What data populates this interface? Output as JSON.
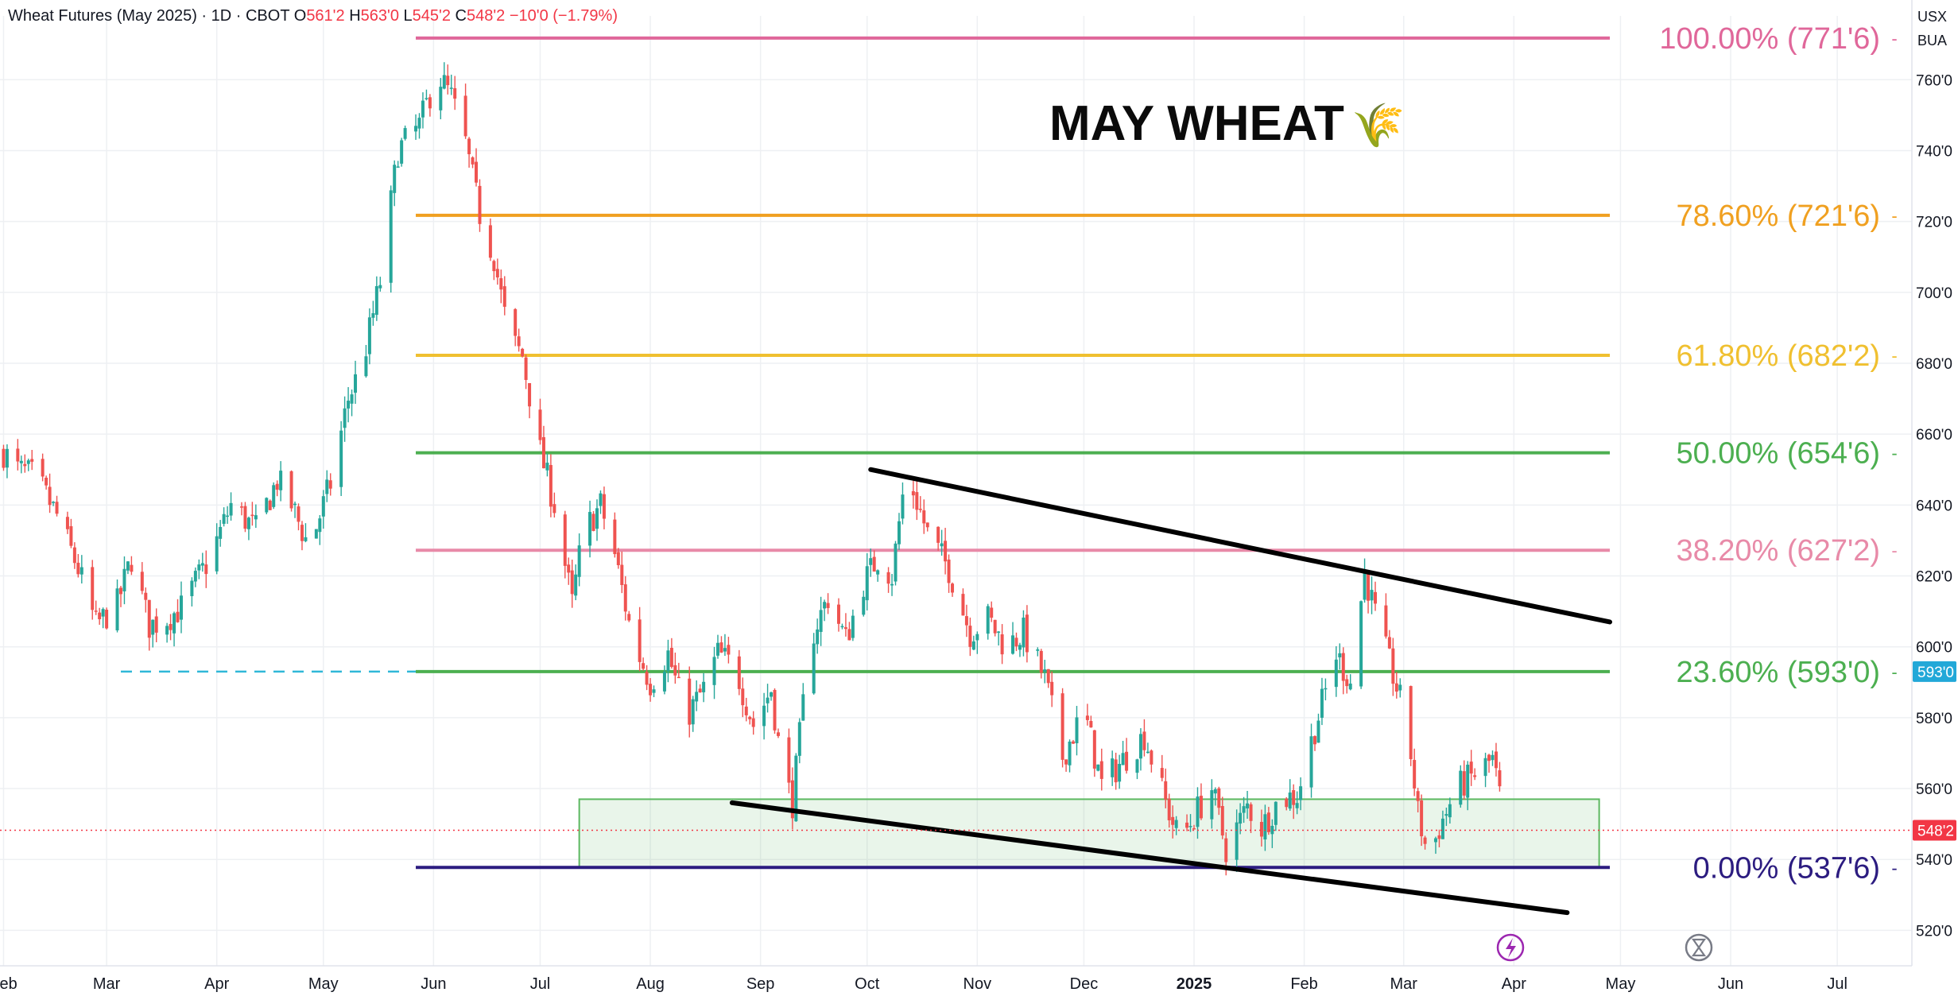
{
  "header": {
    "symbol": "Wheat Futures (May 2025) · 1D · CBOT",
    "o_label": "O",
    "o": "561'2",
    "h_label": "H",
    "h": "563'0",
    "l_label": "L",
    "l": "545'2",
    "c_label": "C",
    "c": "548'2",
    "change": "−10'0 (−1.79%)"
  },
  "currency": {
    "unit": "USX",
    "unit_label": "BUA"
  },
  "footer_icons": [
    "lightning-icon",
    "hourglass-icon"
  ],
  "chart_data": {
    "type": "candlestick",
    "title": "MAY WHEAT",
    "title_emoji": "🌾",
    "colors": {
      "up": "#26a69a",
      "down": "#ef5350"
    },
    "x_tick_labels": [
      "Feb",
      "Mar",
      "Apr",
      "May",
      "Jun",
      "Jul",
      "Aug",
      "Sep",
      "Oct",
      "Nov",
      "Dec",
      "2025",
      "Feb",
      "Mar",
      "Apr",
      "May",
      "Jun",
      "Jul"
    ],
    "x_tick_dates": [
      "2024-02-01",
      "2024-03-01",
      "2024-04-01",
      "2024-05-01",
      "2024-06-01",
      "2024-07-01",
      "2024-08-01",
      "2024-09-01",
      "2024-10-01",
      "2024-11-01",
      "2024-12-01",
      "2025-01-01",
      "2025-02-01",
      "2025-03-01",
      "2025-04-01",
      "2025-05-01",
      "2025-06-01",
      "2025-07-01"
    ],
    "x_range": [
      "2024-01-31",
      "2025-07-22"
    ],
    "y_ticks": [
      520,
      540,
      560,
      580,
      600,
      620,
      640,
      660,
      680,
      700,
      720,
      740,
      760
    ],
    "y_tick_labels": [
      "520'0",
      "540'0",
      "560'0",
      "580'0",
      "600'0",
      "620'0",
      "640'0",
      "660'0",
      "680'0",
      "700'0",
      "720'0",
      "740'0",
      "760'0"
    ],
    "ylim": [
      510,
      778
    ],
    "price_path": [
      [
        "2024-02-01",
        655
      ],
      [
        "2024-02-05",
        650
      ],
      [
        "2024-02-10",
        648
      ],
      [
        "2024-02-16",
        637
      ],
      [
        "2024-02-22",
        622
      ],
      [
        "2024-02-27",
        606
      ],
      [
        "2024-03-04",
        612
      ],
      [
        "2024-03-08",
        625
      ],
      [
        "2024-03-13",
        606
      ],
      [
        "2024-03-18",
        608
      ],
      [
        "2024-03-22",
        611
      ],
      [
        "2024-03-26",
        618
      ],
      [
        "2024-03-30",
        625
      ],
      [
        "2024-04-05",
        640
      ],
      [
        "2024-04-12",
        633
      ],
      [
        "2024-04-18",
        647
      ],
      [
        "2024-04-22",
        640
      ],
      [
        "2024-04-27",
        628
      ],
      [
        "2024-05-03",
        646
      ],
      [
        "2024-05-08",
        670
      ],
      [
        "2024-05-12",
        680
      ],
      [
        "2024-05-17",
        703
      ],
      [
        "2024-05-22",
        740
      ],
      [
        "2024-05-28",
        747
      ],
      [
        "2024-06-02",
        762
      ],
      [
        "2024-06-06",
        755
      ],
      [
        "2024-06-10",
        742
      ],
      [
        "2024-06-14",
        722
      ],
      [
        "2024-06-18",
        710
      ],
      [
        "2024-06-22",
        688
      ],
      [
        "2024-06-26",
        682
      ],
      [
        "2024-07-01",
        655
      ],
      [
        "2024-07-05",
        640
      ],
      [
        "2024-07-10",
        612
      ],
      [
        "2024-07-13",
        632
      ],
      [
        "2024-07-18",
        640
      ],
      [
        "2024-07-22",
        626
      ],
      [
        "2024-07-27",
        602
      ],
      [
        "2024-08-01",
        590
      ],
      [
        "2024-08-06",
        598
      ],
      [
        "2024-08-11",
        580
      ],
      [
        "2024-08-16",
        588
      ],
      [
        "2024-08-20",
        598
      ],
      [
        "2024-08-25",
        594
      ],
      [
        "2024-08-30",
        578
      ],
      [
        "2024-09-04",
        588
      ],
      [
        "2024-09-07",
        566
      ],
      [
        "2024-09-10",
        556
      ],
      [
        "2024-09-15",
        602
      ],
      [
        "2024-09-20",
        614
      ],
      [
        "2024-09-25",
        602
      ],
      [
        "2024-09-30",
        618
      ],
      [
        "2024-10-04",
        625
      ],
      [
        "2024-10-08",
        620
      ],
      [
        "2024-10-12",
        650
      ],
      [
        "2024-10-18",
        632
      ],
      [
        "2024-10-24",
        622
      ],
      [
        "2024-10-30",
        604
      ],
      [
        "2024-11-04",
        608
      ],
      [
        "2024-11-09",
        600
      ],
      [
        "2024-11-14",
        604
      ],
      [
        "2024-11-20",
        591
      ],
      [
        "2024-11-25",
        569
      ],
      [
        "2024-12-01",
        582
      ],
      [
        "2024-12-06",
        561
      ],
      [
        "2024-12-12",
        568
      ],
      [
        "2024-12-18",
        575
      ],
      [
        "2024-12-24",
        556
      ],
      [
        "2024-12-28",
        545
      ],
      [
        "2025-01-02",
        554
      ],
      [
        "2025-01-06",
        560
      ],
      [
        "2025-01-10",
        543
      ],
      [
        "2025-01-16",
        555
      ],
      [
        "2025-01-20",
        549
      ],
      [
        "2025-01-25",
        557
      ],
      [
        "2025-01-30",
        558
      ],
      [
        "2025-02-04",
        577
      ],
      [
        "2025-02-10",
        598
      ],
      [
        "2025-02-14",
        590
      ],
      [
        "2025-02-18",
        621
      ],
      [
        "2025-02-22",
        605
      ],
      [
        "2025-02-26",
        592
      ],
      [
        "2025-03-02",
        578
      ],
      [
        "2025-03-05",
        553
      ],
      [
        "2025-03-08",
        540
      ],
      [
        "2025-03-11",
        549
      ],
      [
        "2025-03-16",
        560
      ],
      [
        "2025-03-21",
        564
      ],
      [
        "2025-03-26",
        568
      ],
      [
        "2025-03-28",
        558
      ],
      [
        "2025-03-31",
        548
      ]
    ],
    "fib_levels": [
      {
        "pct": "100.00%",
        "label": "771'6",
        "value": 771.75,
        "color": "#e0679a"
      },
      {
        "pct": "78.60%",
        "label": "721'6",
        "value": 721.75,
        "color": "#f0a020"
      },
      {
        "pct": "61.80%",
        "label": "682'2",
        "value": 682.25,
        "color": "#f0c030"
      },
      {
        "pct": "50.00%",
        "label": "654'6",
        "value": 654.75,
        "color": "#4caf50"
      },
      {
        "pct": "38.20%",
        "label": "627'2",
        "value": 627.25,
        "color": "#e88aa8"
      },
      {
        "pct": "23.60%",
        "label": "593'0",
        "value": 593.0,
        "color": "#4caf50"
      },
      {
        "pct": "0.00%",
        "label": "537'6",
        "value": 537.75,
        "color": "#2c1c80"
      }
    ],
    "fib_start_date": "2024-05-27",
    "fib_end_date": "2025-04-28",
    "trendlines": [
      {
        "from": [
          "2024-10-02",
          650
        ],
        "to": [
          "2025-04-28",
          607
        ]
      },
      {
        "from": [
          "2024-08-24",
          556
        ],
        "to": [
          "2025-04-16",
          525
        ]
      }
    ],
    "support_zone": {
      "from_date": "2024-07-12",
      "to_date": "2025-04-25",
      "low": 537.75,
      "high": 557
    },
    "dashed_level": {
      "value": 593.0,
      "from_date": "2024-03-05",
      "to_date": "2025-04-28",
      "color": "#30b8d8"
    },
    "current_price": {
      "value": 548.25,
      "label": "548'2",
      "color": "#f23645"
    },
    "level_badge": {
      "value": 593.0,
      "label": "593'0",
      "color": "#22a8d8"
    }
  }
}
